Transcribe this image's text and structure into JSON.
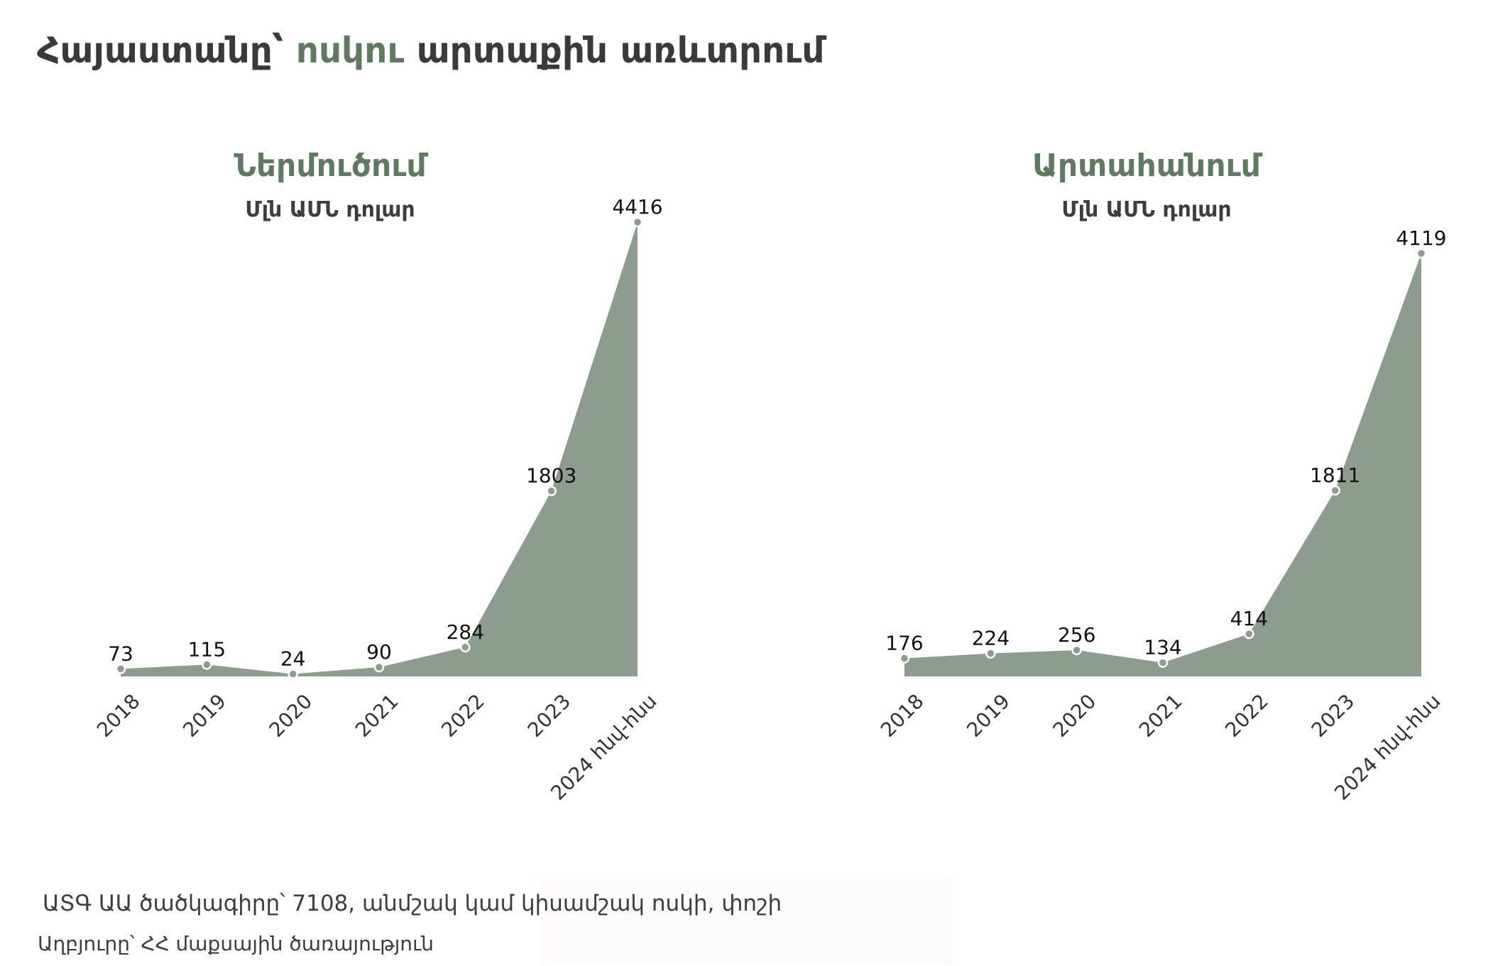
{
  "title": {
    "part1": "Հայաստանը՝ ",
    "accent": "ոսկու",
    "part2": " արտաքին առևտրում"
  },
  "colors": {
    "area": "#8c9c8d",
    "accent": "#5e7a5f",
    "marker": "#8c9c8d",
    "marker_stroke": "#ffffff"
  },
  "chart_data": [
    {
      "type": "area",
      "title": "Ներմուծում",
      "subtitle": "Մլն ԱՄՆ դոլար",
      "categories": [
        "2018",
        "2019",
        "2020",
        "2021",
        "2022",
        "2023",
        "2024 հնվ-հնս"
      ],
      "values": [
        73,
        115,
        24,
        90,
        284,
        1803,
        4416
      ],
      "ylim": [
        0,
        4416
      ],
      "grid": false,
      "legend": "none"
    },
    {
      "type": "area",
      "title": "Արտահանում",
      "subtitle": "Մլն ԱՄՆ դոլար",
      "categories": [
        "2018",
        "2019",
        "2020",
        "2021",
        "2022",
        "2023",
        "2024 հնվ-հնս"
      ],
      "values": [
        176,
        224,
        256,
        134,
        414,
        1811,
        4119
      ],
      "ylim": [
        0,
        4119
      ],
      "grid": false,
      "legend": "none"
    }
  ],
  "footer": {
    "note": "ԱՏԳ ԱԱ ծածկագիրը՝  7108, անմշակ կամ կիսամշակ ոսկի, փոշի",
    "source": "Աղբյուրը՝ ՀՀ մաքսային ծառայություն"
  }
}
